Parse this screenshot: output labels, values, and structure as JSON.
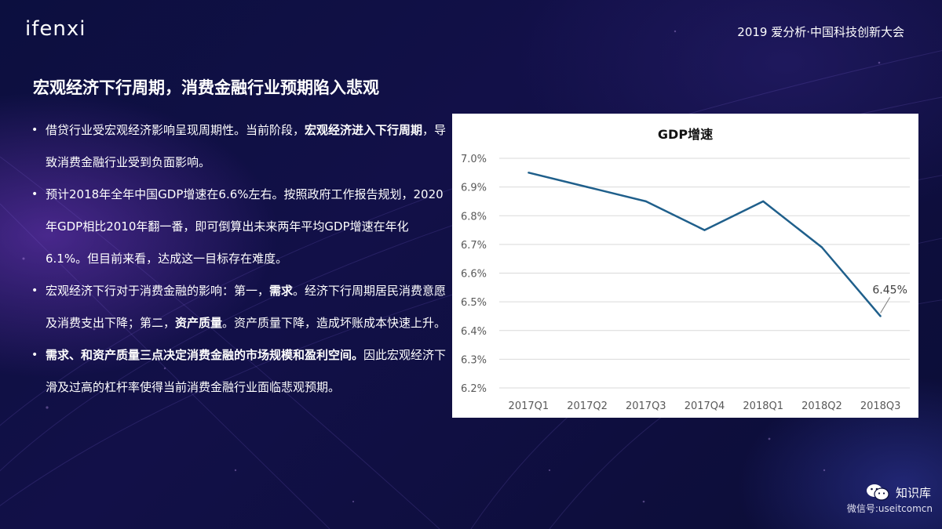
{
  "header": {
    "logo": "ifenxi",
    "conference": "2019 爱分析·中国科技创新大会"
  },
  "headline": "宏观经济下行周期，消费金融行业预期陷入悲观",
  "bullets": [
    {
      "p1": "借贷行业受宏观经济影响呈现周期性。当前阶段，",
      "b1": "宏观经济进入下行周期",
      "p2": "，导致消费金融行业受到负面影响。",
      "b2": "",
      "p3": ""
    },
    {
      "p1": "预计2018年全年中国GDP增速在6.6%左右。按照政府工作报告规划，2020年GDP相比2010年翻一番，即可倒算出未来两年平均GDP增速在年化6.1%。但目前来看，达成这一目标存在难度。",
      "b1": "",
      "p2": "",
      "b2": "",
      "p3": ""
    },
    {
      "p1": "宏观经济下行对于消费金融的影响：第一，",
      "b1": "需求",
      "p2": "。经济下行周期居民消费意愿及消费支出下降；第二，",
      "b2": "资产质量",
      "p3": "。资产质量下降，造成坏账成本快速上升。"
    },
    {
      "p1": "",
      "b1": "需求、和资产质量三点决定消费金融的市场规模和盈利空间。",
      "p2": "因此宏观经济下滑及过高的杠杆率使得当前消费金融行业面临悲观预期。",
      "b2": "",
      "p3": ""
    }
  ],
  "chart_data": {
    "type": "line",
    "title": "GDP增速",
    "categories": [
      "2017Q1",
      "2017Q2",
      "2017Q3",
      "2017Q4",
      "2018Q1",
      "2018Q2",
      "2018Q3"
    ],
    "series": [
      {
        "values": [
          6.95,
          6.9,
          6.85,
          6.75,
          6.85,
          6.69,
          6.45
        ],
        "color": "#1f5f8b"
      }
    ],
    "annotation": {
      "index": 6,
      "label": "6.45%"
    },
    "ylim": [
      6.2,
      7.0
    ],
    "yticks": [
      "6.2%",
      "6.3%",
      "6.4%",
      "6.5%",
      "6.6%",
      "6.7%",
      "6.8%",
      "6.9%",
      "7.0%"
    ],
    "ytick_values": [
      6.2,
      6.3,
      6.4,
      6.5,
      6.6,
      6.7,
      6.8,
      6.9,
      7.0
    ],
    "grid": true,
    "legend": "none"
  },
  "footer": {
    "brand": "知识库",
    "wechat_id": "微信号:useitcomcn",
    "icon": "wechat-icon"
  }
}
